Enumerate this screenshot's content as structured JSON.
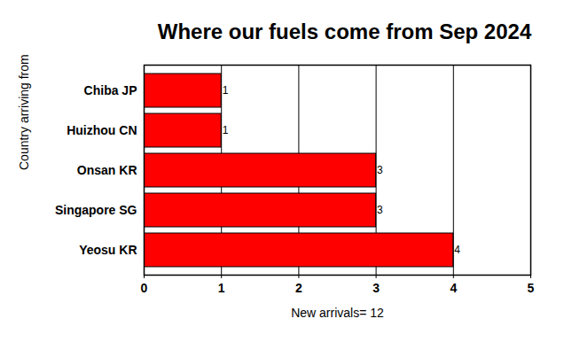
{
  "chart_data": {
    "type": "bar",
    "title": "Where our fuels come from Sep 2024",
    "xlabel": "New arrivals= 12",
    "ylabel": "Country arriving from",
    "categories": [
      "Chiba JP",
      "Huizhou CN",
      "Onsan KR",
      "Singapore SG",
      "Yeosu KR"
    ],
    "values": [
      1,
      1,
      3,
      3,
      4
    ],
    "color": "#ff0000",
    "orientation": "horizontal",
    "xlim": [
      0,
      5
    ],
    "xticks": [
      0,
      1,
      2,
      3,
      4,
      5
    ],
    "grid": true,
    "data_labels": true
  }
}
